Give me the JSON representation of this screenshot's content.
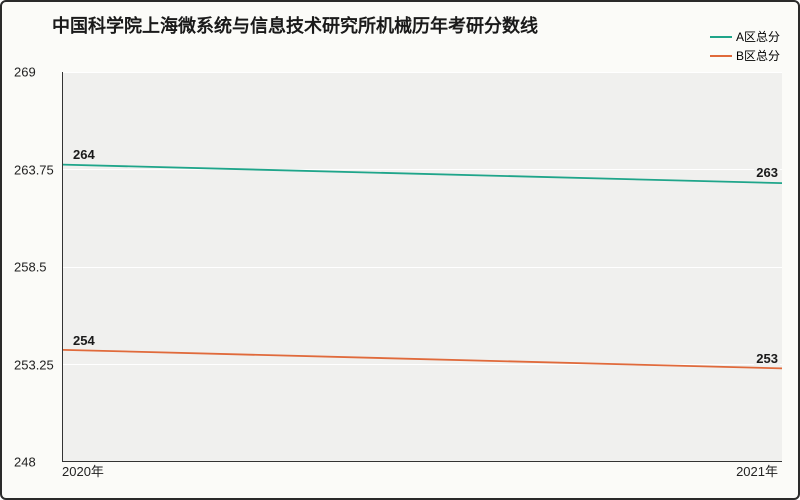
{
  "chart": {
    "type": "line",
    "title": "中国科学院上海微系统与信息技术研究所机械历年考研分数线",
    "title_fontsize": 18,
    "background_color": "#fbfbf8",
    "plot_background_color": "#f0f0ee",
    "border_color": "#2a2a2a",
    "grid_color": "#ffffff",
    "x": {
      "categories": [
        "2020年",
        "2021年"
      ]
    },
    "y": {
      "min": 248,
      "max": 269,
      "ticks": [
        248,
        253.25,
        258.5,
        263.75,
        269
      ],
      "tick_labels": [
        "248",
        "253.25",
        "258.5",
        "263.75",
        "269"
      ]
    },
    "series": [
      {
        "name": "A区总分",
        "color": "#1fa58a",
        "line_width": 1.8,
        "values": [
          264,
          263
        ],
        "value_labels": [
          "264",
          "263"
        ]
      },
      {
        "name": "B区总分",
        "color": "#e06a3b",
        "line_width": 1.8,
        "values": [
          254,
          253
        ],
        "value_labels": [
          "254",
          "253"
        ]
      }
    ],
    "legend": {
      "position": "top-right",
      "fontsize": 12
    },
    "label_fontsize": 13
  }
}
